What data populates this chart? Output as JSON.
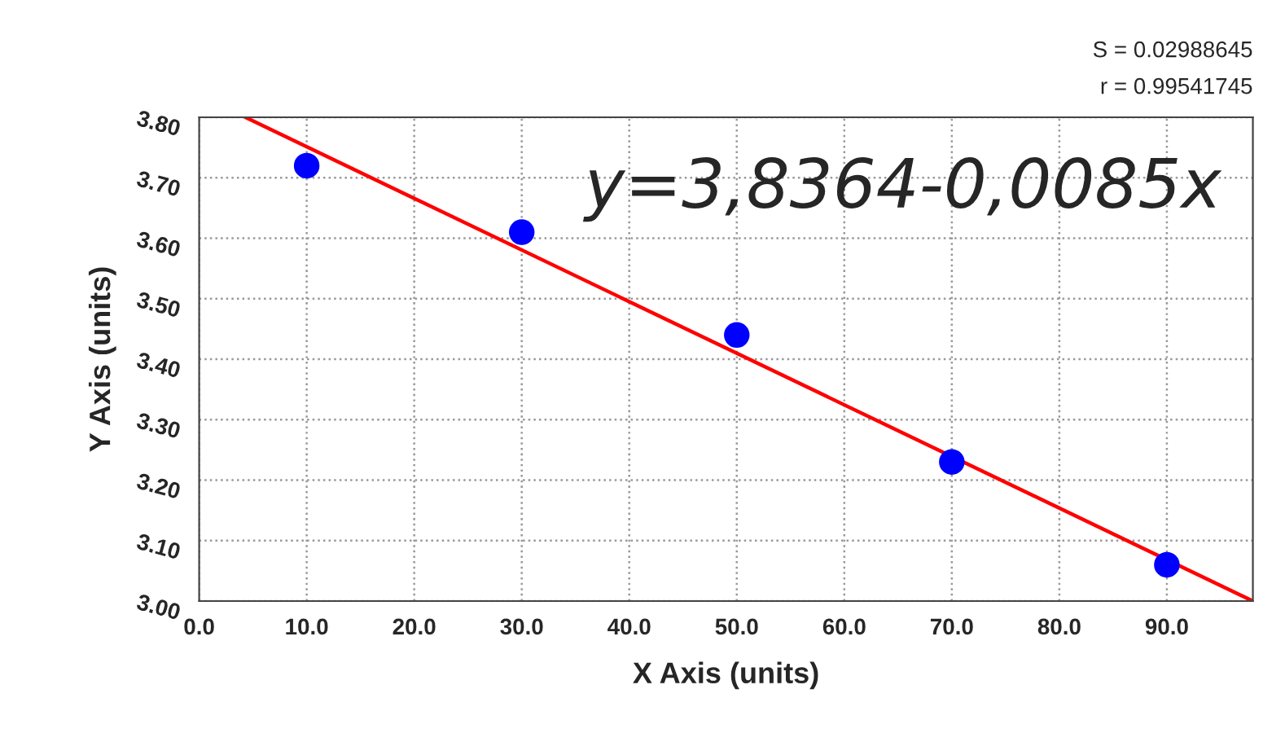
{
  "chart_data": {
    "type": "scatter",
    "xlabel": "X Axis (units)",
    "ylabel": "Y Axis (units)",
    "annotations": [
      "S = 0.02988645",
      "r = 0.99541745",
      "y=3,8364-0,0085x"
    ],
    "series": [
      {
        "color": "#0000ff",
        "x": [
          10,
          30,
          50,
          70,
          90
        ],
        "values": [
          3.72,
          3.61,
          3.44,
          3.23,
          3.06
        ],
        "marker": "circle"
      },
      {
        "type": "line",
        "color": "#ff0000",
        "x": [
          4.3,
          98
        ],
        "values": [
          3.8,
          3.0
        ],
        "marker": "none",
        "line_style": "solid"
      }
    ],
    "xlim": [
      0,
      98
    ],
    "ylim": [
      3.0,
      3.8
    ],
    "xticks": [
      {
        "value": 0,
        "label": "0.0"
      },
      {
        "value": 10,
        "label": "10.0"
      },
      {
        "value": 20,
        "label": "20.0"
      },
      {
        "value": 30,
        "label": "30.0"
      },
      {
        "value": 40,
        "label": "40.0"
      },
      {
        "value": 50,
        "label": "50.0"
      },
      {
        "value": 60,
        "label": "60.0"
      },
      {
        "value": 70,
        "label": "70.0"
      },
      {
        "value": 80,
        "label": "80.0"
      },
      {
        "value": 90,
        "label": "90.0"
      }
    ],
    "yticks": [
      {
        "value": 3.0,
        "label": "3.00"
      },
      {
        "value": 3.1,
        "label": "3.10"
      },
      {
        "value": 3.2,
        "label": "3.20"
      },
      {
        "value": 3.3,
        "label": "3.30"
      },
      {
        "value": 3.4,
        "label": "3.40"
      },
      {
        "value": 3.5,
        "label": "3.50"
      },
      {
        "value": 3.6,
        "label": "3.60"
      },
      {
        "value": 3.7,
        "label": "3.70"
      },
      {
        "value": 3.8,
        "label": "3.80"
      }
    ],
    "grid": true
  }
}
